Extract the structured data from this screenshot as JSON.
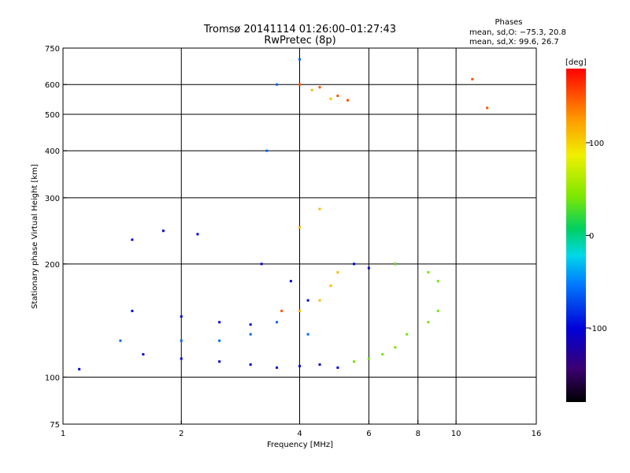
{
  "chart_data": {
    "type": "scatter",
    "title": "Tromsø 20141114 01:26:00–01:27:43",
    "subtitle": "RwPretec (8p)",
    "xlabel": "Frequency [MHz]",
    "ylabel": "Stationary phase Virtual Height [km]",
    "xscale": "log",
    "yscale": "log",
    "xlim": [
      1,
      16
    ],
    "ylim": [
      75,
      750
    ],
    "xticks": [
      1,
      2,
      4,
      6,
      8,
      10,
      16
    ],
    "xtick_labels": [
      "1",
      "2",
      "4",
      "6",
      "8",
      "10",
      "16"
    ],
    "x_gridlines": [
      2,
      4,
      6,
      8,
      10
    ],
    "yticks": [
      75,
      100,
      200,
      300,
      400,
      500,
      600,
      750
    ],
    "ytick_labels": [
      "75",
      "100",
      "200",
      "300",
      "400",
      "500",
      "600",
      "750"
    ],
    "y_gridlines": [
      100,
      200,
      300,
      400,
      500,
      600
    ],
    "grid": true,
    "phase_box": {
      "heading": "Phases",
      "line_o": "mean, sd,O: −75.3, 20.8",
      "line_x": "mean, sd,X:  99.6, 26.7"
    },
    "colorbar": {
      "label": "[deg]",
      "range": [
        -180,
        180
      ],
      "ticks": [
        100,
        0,
        -100
      ],
      "tick_labels": [
        "100",
        "0",
        "-100"
      ]
    },
    "series": [
      {
        "phase": -100,
        "points": [
          [
            1.1,
            105
          ],
          [
            1.6,
            115
          ],
          [
            2,
            112
          ],
          [
            2.5,
            110
          ],
          [
            3,
            108
          ],
          [
            3.5,
            106
          ],
          [
            4,
            107
          ],
          [
            4.5,
            108
          ],
          [
            5,
            106
          ],
          [
            1.5,
            150
          ],
          [
            2,
            145
          ],
          [
            2.5,
            140
          ],
          [
            3,
            138
          ],
          [
            1.5,
            232
          ],
          [
            1.8,
            245
          ],
          [
            2.2,
            240
          ],
          [
            3.2,
            200
          ],
          [
            3.8,
            180
          ],
          [
            4.2,
            160
          ],
          [
            5.5,
            200
          ],
          [
            6,
            195
          ],
          [
            7,
            200
          ]
        ]
      },
      {
        "phase": -60,
        "points": [
          [
            1.4,
            125
          ],
          [
            2,
            125
          ],
          [
            2.5,
            125
          ],
          [
            3,
            130
          ],
          [
            3.5,
            140
          ],
          [
            4.2,
            130
          ],
          [
            3.3,
            400
          ],
          [
            3.5,
            600
          ],
          [
            4,
            700
          ]
        ]
      },
      {
        "phase": 110,
        "points": [
          [
            4,
            150
          ],
          [
            4.5,
            160
          ],
          [
            4.8,
            175
          ],
          [
            5,
            190
          ],
          [
            4,
            250
          ],
          [
            4.5,
            280
          ],
          [
            4.3,
            580
          ],
          [
            4.8,
            550
          ]
        ]
      },
      {
        "phase": 40,
        "points": [
          [
            5.5,
            110
          ],
          [
            6,
            112
          ],
          [
            6.5,
            115
          ],
          [
            7,
            120
          ],
          [
            7.5,
            130
          ],
          [
            8.5,
            140
          ],
          [
            9,
            150
          ],
          [
            7,
            200
          ],
          [
            8.5,
            190
          ],
          [
            9,
            180
          ]
        ]
      },
      {
        "phase": 150,
        "points": [
          [
            4,
            600
          ],
          [
            4.5,
            590
          ],
          [
            5,
            560
          ],
          [
            5.3,
            545
          ],
          [
            3.6,
            150
          ],
          [
            12,
            520
          ],
          [
            11,
            620
          ]
        ]
      }
    ]
  }
}
